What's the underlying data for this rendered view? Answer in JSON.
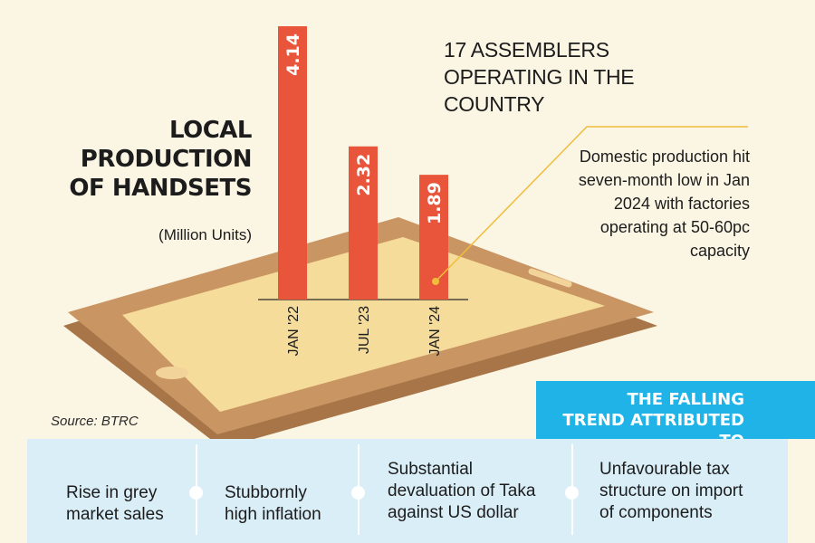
{
  "chart_data": {
    "type": "bar",
    "title": "LOCAL PRODUCTION OF HANDSETS",
    "subtitle": "(Million Units)",
    "categories": [
      "JAN '22",
      "JUL '23",
      "JAN '24"
    ],
    "values": [
      4.14,
      2.32,
      1.89
    ],
    "value_labels": [
      "4.14",
      "2.32",
      "1.89"
    ],
    "ylim": [
      0,
      4.14
    ],
    "grid": false,
    "bar_color": "#e8553a"
  },
  "headline": "17 ASSEMBLERS OPERATING IN THE COUNTRY",
  "annotation": "Domestic production hit seven-month low in Jan 2024 with factories operating at 50-60pc capacity",
  "source": "Source: BTRC",
  "banner": {
    "line1": "THE FALLING",
    "line2": "TREND ATTRIBUTED TO"
  },
  "reasons": [
    [
      "Rise in grey",
      "market sales"
    ],
    [
      "Stubbornly",
      "high inflation"
    ],
    [
      "Substantial",
      "devaluation of Taka",
      "against US dollar"
    ],
    [
      "Unfavourable tax",
      "structure on import",
      "of components"
    ]
  ],
  "colors": {
    "background": "#fbf5e4",
    "phone_body": "#c99563",
    "phone_screen": "#f6dc9a",
    "accent_blue": "#1fb3e8",
    "panel_blue": "#daeef8",
    "leader_line": "#f0bd3a"
  }
}
